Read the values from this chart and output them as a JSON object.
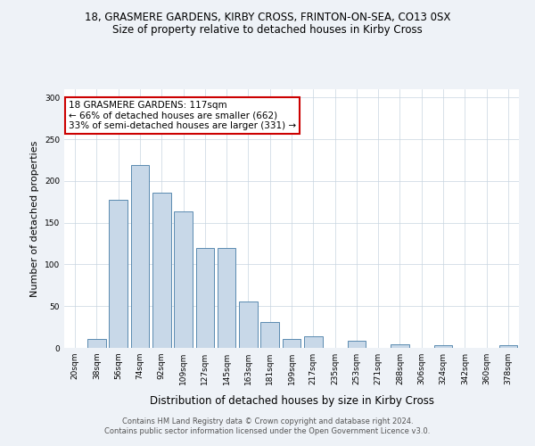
{
  "title": "18, GRASMERE GARDENS, KIRBY CROSS, FRINTON-ON-SEA, CO13 0SX",
  "subtitle": "Size of property relative to detached houses in Kirby Cross",
  "xlabel": "Distribution of detached houses by size in Kirby Cross",
  "ylabel": "Number of detached properties",
  "bar_labels": [
    "20sqm",
    "38sqm",
    "56sqm",
    "74sqm",
    "92sqm",
    "109sqm",
    "127sqm",
    "145sqm",
    "163sqm",
    "181sqm",
    "199sqm",
    "217sqm",
    "235sqm",
    "253sqm",
    "271sqm",
    "288sqm",
    "306sqm",
    "324sqm",
    "342sqm",
    "360sqm",
    "378sqm"
  ],
  "bar_values": [
    0,
    11,
    177,
    219,
    186,
    164,
    120,
    120,
    56,
    31,
    11,
    14,
    0,
    9,
    0,
    4,
    0,
    3,
    0,
    0,
    3
  ],
  "bar_color": "#c8d8e8",
  "bar_edgecolor": "#5a8ab0",
  "ylim": [
    0,
    310
  ],
  "annotation_box_text": "18 GRASMERE GARDENS: 117sqm\n← 66% of detached houses are smaller (662)\n33% of semi-detached houses are larger (331) →",
  "annotation_box_color": "#ffffff",
  "annotation_box_edgecolor": "#cc0000",
  "footer_line1": "Contains HM Land Registry data © Crown copyright and database right 2024.",
  "footer_line2": "Contains public sector information licensed under the Open Government Licence v3.0.",
  "bg_color": "#eef2f7",
  "plot_bg_color": "#ffffff",
  "title_fontsize": 8.5,
  "subtitle_fontsize": 8.5,
  "tick_fontsize": 6.5,
  "ylabel_fontsize": 8,
  "xlabel_fontsize": 8.5,
  "footer_fontsize": 6,
  "annotation_fontsize": 7.5,
  "grid_color": "#c8d4e0"
}
